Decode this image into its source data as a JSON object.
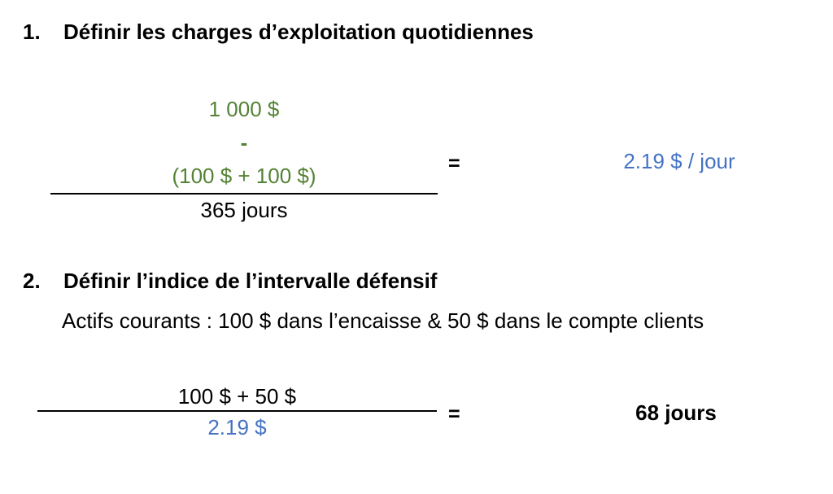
{
  "page": {
    "background": "#ffffff",
    "kind": "slide"
  },
  "colors": {
    "text": "#000000",
    "accent_green": "#548235",
    "accent_blue": "#4472C4"
  },
  "section1": {
    "number": "1.",
    "title": "Définir les charges d’exploitation quotidiennes",
    "fraction": {
      "numerator_line1": "1 000 $",
      "numerator_line2": "-",
      "numerator_line3": "(100 $ + 100 $)",
      "denominator": "365 jours"
    },
    "equals": "=",
    "result": "2.19 $ / jour"
  },
  "section2": {
    "number": "2.",
    "title": "Définir l’indice de l’intervalle défensif",
    "subtitle": "Actifs courants : 100 $ dans l’encaisse & 50 $ dans le compte clients",
    "fraction": {
      "numerator": "100 $ + 50 $",
      "denominator": "2.19 $"
    },
    "equals": "=",
    "result": "68 jours"
  }
}
